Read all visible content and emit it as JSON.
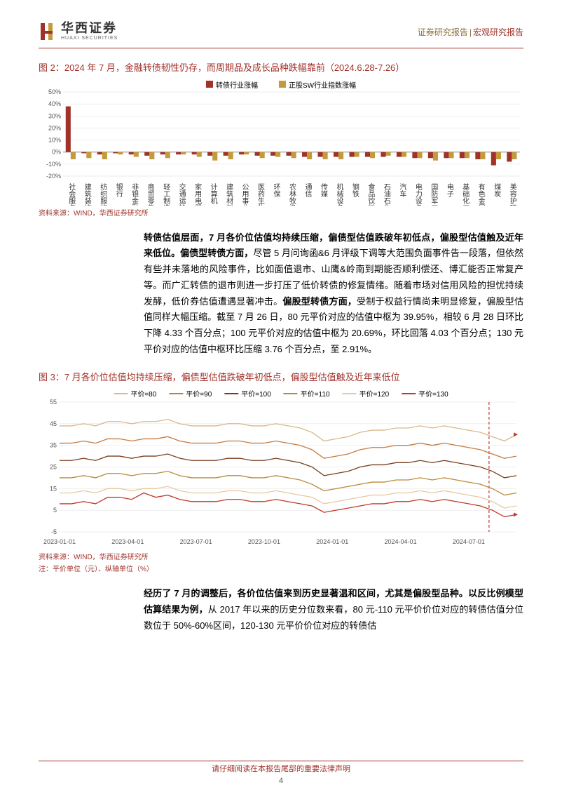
{
  "header": {
    "company_cn": "华西证券",
    "company_en": "HUAXI SECURITIES",
    "right_a": "证券研究报告",
    "right_b": "宏观研究报告",
    "logo_fill": "#a0322a",
    "logo_accent": "#c49a3a"
  },
  "fig2": {
    "title": "图 2：2024 年 7 月，金融转债韧性仍存，而周期品及成长品种跌幅靠前（2024.6.28-7.26）",
    "legend": [
      {
        "label": "转债行业涨幅",
        "color": "#a0322a"
      },
      {
        "label": "正股SW行业指数涨幅",
        "color": "#c49a3a"
      }
    ],
    "ylim": [
      -20,
      50
    ],
    "ytick_step": 10,
    "categories": [
      "社会服务",
      "建筑装饰",
      "纺织服饰",
      "银行",
      "非银金融",
      "商贸零售",
      "轻工制造",
      "交通运输",
      "家用电器",
      "计算机",
      "建筑材料",
      "公用事业",
      "医药生物",
      "环保",
      "农林牧渔",
      "通信",
      "传媒",
      "机械设备",
      "钢铁",
      "食品饮料",
      "石油石化",
      "汽车",
      "电力设备",
      "国防军工",
      "电子",
      "基础化工",
      "有色金属",
      "煤炭",
      "美容护理"
    ],
    "series1": [
      38,
      -1,
      -2,
      -1,
      -2,
      -3,
      -2,
      -2,
      -2,
      -3,
      -3,
      -2,
      -3,
      -3,
      -3,
      -4,
      -4,
      -4,
      -4,
      -4,
      -4,
      -4,
      -5,
      -5,
      -5,
      -5,
      -6,
      -11,
      -8
    ],
    "series2": [
      -6,
      -5,
      -6,
      -2,
      -4,
      -6,
      -5,
      -2,
      -4,
      -7,
      -6,
      -2,
      -5,
      -4,
      -5,
      -6,
      -6,
      -6,
      -4,
      -5,
      -3,
      -4,
      -5,
      -7,
      -5,
      -5,
      -6,
      -6,
      -6
    ],
    "bar_width": 0.35,
    "grid_color": "#ccc",
    "source": "资料来源：WIND，华西证券研究所"
  },
  "para1_html": "<b>转债估值层面，7 月各价位估值均持续压缩，偏债型估值跌破年初低点，偏股型估值触及近年来低位。偏债型转债方面，</b>尽管 5 月问询函&6 月评级下调等大范围负面事件告一段落，但依然有些并未落地的风险事件，比如面值退市、山鹰&岭南到期能否顺利偿还、博汇能否正常复产等。而广汇转债的退市则进一步打压了低价转债的修复情绪。随着市场对信用风险的担忧持续发酵，低价券估值遭遇显著冲击。<b>偏股型转债方面，</b>受制于权益行情尚未明显修复，偏股型估值同样大幅压缩。截至 7 月 26 日，80 元平价对应的估值中枢为 39.95%，相较 6 月 28 日环比下降 4.33 个百分点；100 元平价对应的估值中枢为 20.69%，环比回落 4.03 个百分点；130 元平价对应的估值中枢环比压缩 3.76 个百分点，至 2.91%。",
  "fig3": {
    "title": "图 3：7 月各价位估值均持续压缩，偏债型估值跌破年初低点，偏股型估值触及近年来低位",
    "legend": [
      {
        "label": "平价=80",
        "color": "#d9b88a"
      },
      {
        "label": "平价=90",
        "color": "#c67b42"
      },
      {
        "label": "平价=100",
        "color": "#7a3e1e"
      },
      {
        "label": "平价=110",
        "color": "#b88a3a"
      },
      {
        "label": "平价=120",
        "color": "#e8c9a0"
      },
      {
        "label": "平价=130",
        "color": "#c0392b"
      }
    ],
    "ylim": [
      -5,
      55
    ],
    "ytick_step": 10,
    "xlabels": [
      "2023-01-01",
      "2023-04-01",
      "2023-07-01",
      "2023-10-01",
      "2024-01-01",
      "2024-04-01",
      "2024-07-01"
    ],
    "lines": {
      "p80": [
        44,
        44,
        45,
        44,
        46,
        46,
        45,
        46,
        46,
        47,
        45,
        44,
        44,
        44,
        45,
        45,
        44,
        44,
        45,
        44,
        43,
        41,
        37,
        38,
        39,
        41,
        42,
        42,
        43,
        43,
        44,
        43,
        44,
        43,
        42,
        41,
        39,
        37,
        40
      ],
      "p90": [
        36,
        36,
        37,
        36,
        38,
        38,
        37,
        38,
        38,
        39,
        37,
        36,
        36,
        36,
        37,
        37,
        36,
        36,
        37,
        36,
        35,
        33,
        29,
        30,
        31,
        33,
        34,
        34,
        35,
        35,
        36,
        35,
        36,
        35,
        34,
        33,
        31,
        29,
        30
      ],
      "p100": [
        28,
        28,
        29,
        28,
        30,
        30,
        29,
        30,
        30,
        31,
        29,
        28,
        28,
        28,
        29,
        29,
        28,
        28,
        29,
        28,
        27,
        25,
        21,
        22,
        23,
        25,
        26,
        26,
        27,
        27,
        28,
        27,
        28,
        27,
        26,
        25,
        23,
        20,
        21
      ],
      "p110": [
        20,
        20,
        21,
        20,
        22,
        22,
        21,
        22,
        22,
        23,
        21,
        20,
        20,
        20,
        21,
        21,
        20,
        20,
        21,
        20,
        19,
        17,
        14,
        15,
        16,
        17,
        18,
        18,
        19,
        19,
        20,
        19,
        20,
        19,
        18,
        17,
        15,
        12,
        13
      ],
      "p120": [
        13,
        13,
        14,
        13,
        15,
        15,
        14,
        15,
        15,
        16,
        14,
        13,
        13,
        13,
        14,
        14,
        13,
        13,
        14,
        13,
        12,
        11,
        8,
        9,
        10,
        11,
        12,
        12,
        13,
        13,
        14,
        13,
        14,
        13,
        12,
        11,
        9,
        6,
        7
      ],
      "p130": [
        8,
        8,
        9,
        8,
        11,
        11,
        10,
        13,
        11,
        12,
        10,
        9,
        9,
        9,
        10,
        10,
        9,
        9,
        10,
        9,
        8,
        7,
        4,
        5,
        6,
        7,
        8,
        8,
        9,
        9,
        10,
        9,
        10,
        9,
        8,
        7,
        5,
        2,
        3
      ]
    },
    "vline_x": 0.94,
    "vline_color": "#c0392b",
    "grid_color": "#e0e0e0",
    "source": "资料来源：WIND，华西证券研究所",
    "note": "注：平价单位（元）、纵轴单位（%）"
  },
  "para2_html": "<b>经历了 7 月的调整后，各价位估值来到历史显著温和区间，尤其是偏股型品种。以反比例模型估算结果为例，</b>从 2017 年以来的历史分位数来看，80 元-110 元平价价位对应的转债估值分位数位于 50%-60%区间，120-130 元平价价位对应的转债估",
  "footer": {
    "disclaimer": "请仔细阅读在本报告尾部的重要法律声明",
    "page": "4"
  }
}
